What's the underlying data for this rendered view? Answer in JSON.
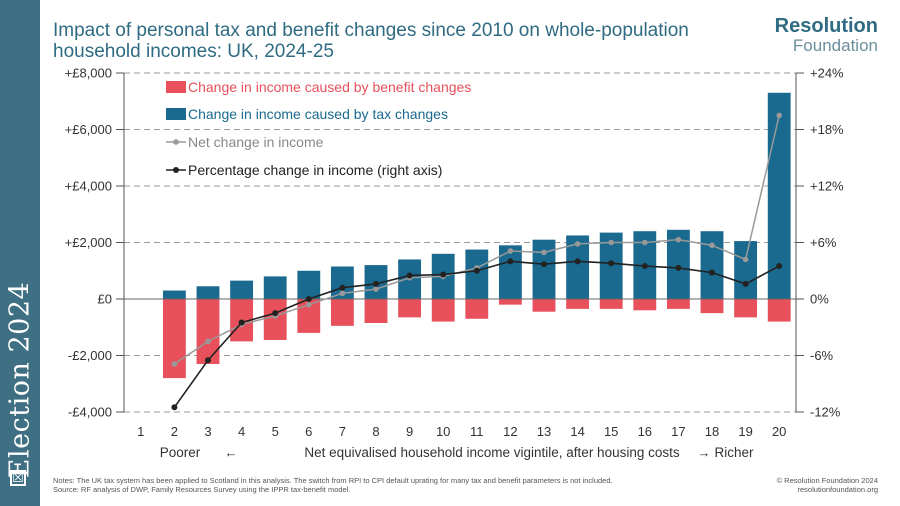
{
  "sidebar": {
    "label": "Election 2024",
    "box_glyph": "☒"
  },
  "header": {
    "title_line1": "Impact of personal tax and benefit changes since 2010 on whole-population",
    "title_line2": "household incomes: UK, 2024-25"
  },
  "logo": {
    "line1": "Resolution",
    "line2": "Foundation"
  },
  "footer": {
    "notes_line1": "Notes: The UK tax system has been applied to Scotland in this analysis. The switch from RPI to CPI default uprating for many tax and benefit parameters is not included.",
    "notes_line2": "Source: RF analysis of DWP, Family Resources Survey using the IPPR tax-benefit model.",
    "copyright_line1": "© Resolution Foundation 2024",
    "copyright_line2": "resolutionfoundation.org"
  },
  "colors": {
    "benefit": "#e8505b",
    "tax": "#1a6a8f",
    "net": "#999999",
    "pct": "#222222",
    "brand": "#2f6b82"
  },
  "chart_data": {
    "type": "bar",
    "title": "Impact of personal tax and benefit changes since 2010 on whole-population household incomes: UK, 2024-25",
    "categories": [
      "1",
      "2",
      "3",
      "4",
      "5",
      "6",
      "7",
      "8",
      "9",
      "10",
      "11",
      "12",
      "13",
      "14",
      "15",
      "16",
      "17",
      "18",
      "19",
      "20"
    ],
    "xlabel_left": "Poorer",
    "xlabel": "Net equivalised household income vigintile, after housing costs",
    "xlabel_right": "Richer",
    "left_arrow": "←",
    "right_arrow": "→",
    "ylim": [
      -4000,
      8000
    ],
    "y2lim": [
      -12,
      24
    ],
    "yticks": [
      -4000,
      -2000,
      0,
      2000,
      4000,
      6000,
      8000
    ],
    "ytick_labels": [
      "-£4,000",
      "-£2,000",
      "£0",
      "+£2,000",
      "+£4,000",
      "+£6,000",
      "+£8,000"
    ],
    "y2ticks": [
      -12,
      -6,
      0,
      6,
      12,
      18,
      24
    ],
    "y2tick_labels": [
      "-12%",
      "-6%",
      "0%",
      "+6%",
      "+12%",
      "+18%",
      "+24%"
    ],
    "series": [
      {
        "name": "Change in income caused by benefit changes",
        "type": "bar",
        "axis": "left",
        "values": [
          null,
          -2800,
          -2300,
          -1500,
          -1450,
          -1200,
          -950,
          -850,
          -650,
          -800,
          -700,
          -200,
          -450,
          -350,
          -350,
          -400,
          -350,
          -500,
          -650,
          -800
        ]
      },
      {
        "name": "Change in income caused by tax changes",
        "type": "bar",
        "axis": "left",
        "values": [
          null,
          300,
          450,
          650,
          800,
          1000,
          1150,
          1200,
          1400,
          1600,
          1750,
          1900,
          2100,
          2250,
          2350,
          2400,
          2450,
          2400,
          2050,
          7300
        ]
      },
      {
        "name": "Net change in income",
        "type": "line",
        "axis": "left",
        "values": [
          null,
          -2300,
          -1500,
          -900,
          -600,
          -200,
          200,
          350,
          750,
          800,
          1100,
          1700,
          1650,
          1950,
          2000,
          2000,
          2100,
          1900,
          1400,
          6500
        ]
      },
      {
        "name": "Percentage change in income (right axis)",
        "type": "line",
        "axis": "right",
        "values": [
          null,
          -11.5,
          -6.5,
          -2.5,
          -1.5,
          0,
          1.2,
          1.6,
          2.5,
          2.6,
          3.0,
          4.0,
          3.7,
          4.0,
          3.8,
          3.5,
          3.3,
          2.8,
          1.6,
          3.5
        ]
      }
    ],
    "legend_position": "top-left",
    "grid": "horizontal dashed"
  }
}
